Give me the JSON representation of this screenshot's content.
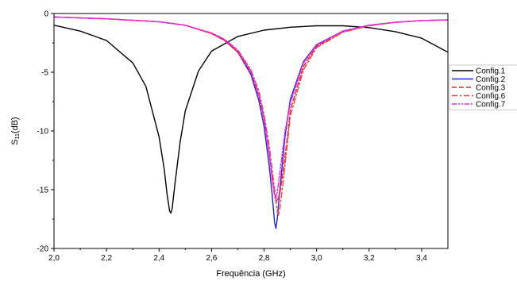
{
  "chart_data": {
    "type": "line",
    "xlabel": "Frequência (GHz)",
    "ylabel_main": "S",
    "ylabel_sub": "11",
    "ylabel_unit": "(dB)",
    "xlim": [
      2.0,
      3.5
    ],
    "ylim": [
      -20,
      0
    ],
    "xticks": [
      {
        "v": 2.0,
        "label": "2,0"
      },
      {
        "v": 2.2,
        "label": "2,2"
      },
      {
        "v": 2.4,
        "label": "2,4"
      },
      {
        "v": 2.6,
        "label": "2,6"
      },
      {
        "v": 2.8,
        "label": "2,8"
      },
      {
        "v": 3.0,
        "label": "3,0"
      },
      {
        "v": 3.2,
        "label": "3,2"
      },
      {
        "v": 3.4,
        "label": "3,4"
      }
    ],
    "yticks": [
      {
        "v": 0,
        "label": "0"
      },
      {
        "v": -5,
        "label": "-5"
      },
      {
        "v": -10,
        "label": "-10"
      },
      {
        "v": -15,
        "label": "-15"
      },
      {
        "v": -20,
        "label": "-20"
      }
    ],
    "grid": false,
    "legend_position": "right",
    "series": [
      {
        "name": "Config.1",
        "color": "#000000",
        "dash": "solid",
        "x": [
          2.0,
          2.1,
          2.2,
          2.3,
          2.35,
          2.4,
          2.42,
          2.43,
          2.44,
          2.445,
          2.45,
          2.46,
          2.48,
          2.5,
          2.55,
          2.6,
          2.7,
          2.8,
          2.9,
          3.0,
          3.1,
          3.2,
          3.3,
          3.4,
          3.5
        ],
        "y": [
          -1.0,
          -1.5,
          -2.3,
          -4.2,
          -6.2,
          -10.5,
          -13.3,
          -15.3,
          -16.8,
          -17.0,
          -16.6,
          -14.6,
          -11.0,
          -8.3,
          -4.9,
          -3.2,
          -1.95,
          -1.42,
          -1.17,
          -1.05,
          -1.05,
          -1.2,
          -1.55,
          -2.1,
          -3.3
        ]
      },
      {
        "name": "Config.2",
        "color": "#2020ff",
        "dash": "solid",
        "x": [
          2.0,
          2.2,
          2.4,
          2.5,
          2.6,
          2.65,
          2.7,
          2.75,
          2.78,
          2.8,
          2.82,
          2.83,
          2.84,
          2.845,
          2.85,
          2.86,
          2.88,
          2.9,
          2.95,
          3.0,
          3.1,
          3.2,
          3.3,
          3.4,
          3.5
        ],
        "y": [
          -0.3,
          -0.45,
          -0.7,
          -1.0,
          -1.7,
          -2.3,
          -3.3,
          -5.2,
          -7.4,
          -9.6,
          -13.0,
          -15.3,
          -17.8,
          -18.3,
          -17.5,
          -15.0,
          -10.4,
          -7.3,
          -4.1,
          -2.65,
          -1.5,
          -1.0,
          -0.75,
          -0.6,
          -0.55
        ]
      },
      {
        "name": "Config.3",
        "color": "#ff2020",
        "dash": "6,3",
        "x": [
          2.0,
          2.2,
          2.4,
          2.5,
          2.6,
          2.65,
          2.7,
          2.75,
          2.78,
          2.8,
          2.82,
          2.83,
          2.84,
          2.85,
          2.86,
          2.87,
          2.89,
          2.9,
          2.95,
          3.0,
          3.1,
          3.2,
          3.3,
          3.4,
          3.5
        ],
        "y": [
          -0.3,
          -0.45,
          -0.7,
          -1.0,
          -1.7,
          -2.3,
          -3.3,
          -5.0,
          -7.0,
          -9.0,
          -12.0,
          -13.8,
          -15.6,
          -16.0,
          -15.3,
          -13.8,
          -10.3,
          -8.2,
          -4.5,
          -2.8,
          -1.55,
          -1.0,
          -0.75,
          -0.6,
          -0.55
        ]
      },
      {
        "name": "Config.6",
        "color": "#ff4040",
        "dash": "7,3,2,3",
        "x": [
          2.0,
          2.2,
          2.4,
          2.5,
          2.6,
          2.65,
          2.7,
          2.75,
          2.78,
          2.8,
          2.82,
          2.84,
          2.85,
          2.855,
          2.86,
          2.87,
          2.89,
          2.9,
          2.95,
          3.0,
          3.1,
          3.2,
          3.3,
          3.4,
          3.5
        ],
        "y": [
          -0.3,
          -0.45,
          -0.7,
          -1.0,
          -1.7,
          -2.2,
          -3.1,
          -4.8,
          -6.6,
          -8.6,
          -11.3,
          -15.0,
          -16.8,
          -17.2,
          -16.6,
          -14.8,
          -10.8,
          -8.7,
          -4.8,
          -2.9,
          -1.6,
          -1.05,
          -0.75,
          -0.6,
          -0.55
        ]
      },
      {
        "name": "Config.7",
        "color": "#ee22ee",
        "dash": "6,2,2,2,2,2",
        "x": [
          2.0,
          2.2,
          2.4,
          2.5,
          2.6,
          2.65,
          2.7,
          2.75,
          2.78,
          2.8,
          2.82,
          2.83,
          2.84,
          2.845,
          2.85,
          2.86,
          2.88,
          2.9,
          2.95,
          3.0,
          3.1,
          3.2,
          3.3,
          3.4,
          3.5
        ],
        "y": [
          -0.3,
          -0.45,
          -0.7,
          -1.0,
          -1.65,
          -2.2,
          -3.15,
          -4.9,
          -6.9,
          -8.9,
          -12.0,
          -14.0,
          -15.4,
          -15.7,
          -15.2,
          -13.6,
          -10.0,
          -7.6,
          -4.2,
          -2.7,
          -1.5,
          -1.0,
          -0.75,
          -0.6,
          -0.55
        ]
      }
    ]
  }
}
